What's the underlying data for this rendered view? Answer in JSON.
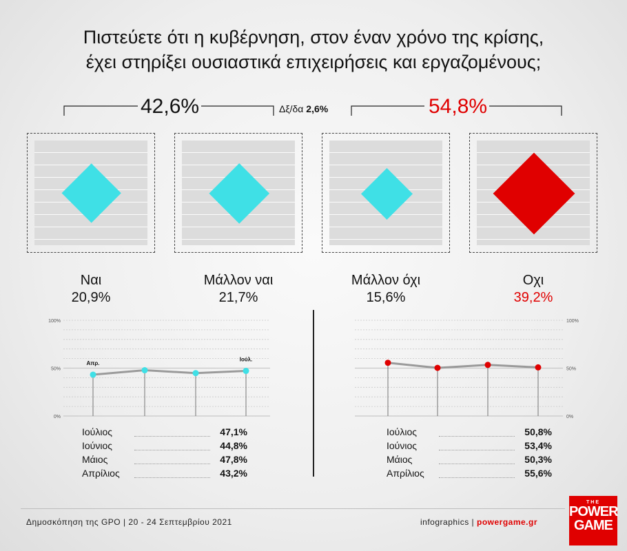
{
  "title_line1": "Πιστεύετε ότι η κυβέρνηση, στον έναν χρόνο της κρίσης,",
  "title_line2": "έχει στηρίξει ουσιαστικά επιχειρήσεις και εργαζομένους;",
  "totals": {
    "yes_total": "42,6%",
    "dk_label": "Δξ/δα",
    "dk_value": "2,6%",
    "no_total": "54,8%"
  },
  "colors": {
    "cyan": "#3fe0e6",
    "red": "#e00000",
    "line": "#9a9a9a"
  },
  "chart_data": [
    {
      "type": "bar",
      "categories": [
        "Ναι",
        "Μάλλον ναι",
        "Μάλλον όχι",
        "Οχι"
      ],
      "values": [
        20.9,
        21.7,
        15.6,
        39.2
      ],
      "value_labels": [
        "20,9%",
        "21,7%",
        "15,6%",
        "39,2%"
      ]
    },
    {
      "type": "line",
      "x": [
        "Απρ.",
        "Μάιος",
        "Ιούνιος",
        "Ιούλ."
      ],
      "values": [
        43.2,
        47.8,
        44.8,
        47.1
      ],
      "ylim": [
        0,
        100
      ],
      "yticks": [
        "100%",
        "50%",
        "0%"
      ],
      "start_label": "Απρ.",
      "end_label": "Ιούλ."
    },
    {
      "type": "line",
      "x": [
        "Απρίλιος",
        "Μάιος",
        "Ιούνιος",
        "Ιούλιος"
      ],
      "values": [
        55.6,
        50.3,
        53.4,
        50.8
      ],
      "ylim": [
        0,
        100
      ],
      "yticks": [
        "100%",
        "50%",
        "0%"
      ]
    }
  ],
  "left_table": [
    {
      "month": "Ιούλιος",
      "value": "47,1%"
    },
    {
      "month": "Ιούνιος",
      "value": "44,8%"
    },
    {
      "month": "Μάιος",
      "value": "47,8%"
    },
    {
      "month": "Απρίλιος",
      "value": "43,2%"
    }
  ],
  "right_table": [
    {
      "month": "Ιούλιος",
      "value": "50,8%"
    },
    {
      "month": "Ιούνιος",
      "value": "53,4%"
    },
    {
      "month": "Μάιος",
      "value": "50,3%"
    },
    {
      "month": "Απρίλιος",
      "value": "55,6%"
    }
  ],
  "footer": {
    "source": "Δημοσκόπηση της GPO | 20 - 24 Σεπτεμβρίου 2021",
    "credit_prefix": "infographics | ",
    "credit_site": "powergame.gr"
  },
  "logo": {
    "the": "THE",
    "power": "POWER",
    "game": "GAME"
  }
}
